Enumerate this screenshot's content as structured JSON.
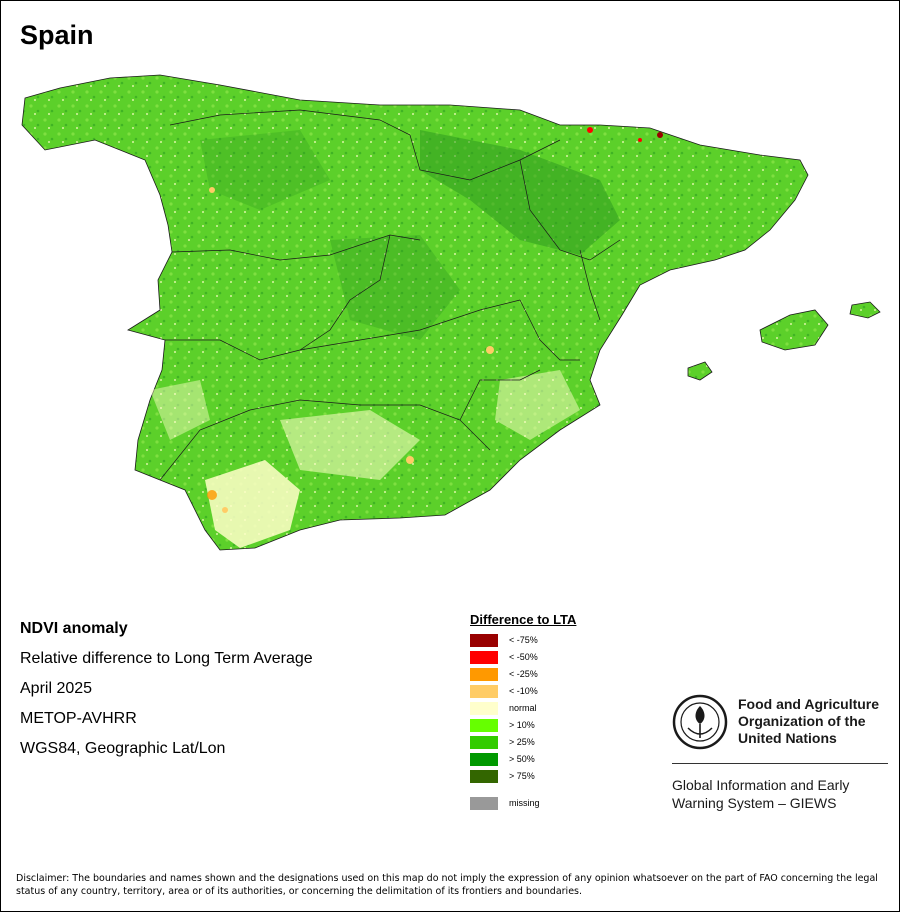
{
  "map": {
    "title": "Spain",
    "description": {
      "heading": "NDVI anomaly",
      "lines": [
        "Relative difference to Long Term Average",
        "April 2025",
        "METOP-AVHRR",
        "WGS84, Geographic Lat/Lon"
      ]
    },
    "colors": {
      "land_base": "#5cd02a",
      "land_dark": "#2f9a1f",
      "land_darker": "#1f7a1a",
      "normal": "#ffffc8",
      "border": "#1a1a1a"
    }
  },
  "legend": {
    "title": "Difference to LTA",
    "items": [
      {
        "label": "< -75%",
        "color": "#990000"
      },
      {
        "label": "< -50%",
        "color": "#ff0000"
      },
      {
        "label": "< -25%",
        "color": "#ff9900"
      },
      {
        "label": "< -10%",
        "color": "#ffcc66"
      },
      {
        "label": "normal",
        "color": "#ffffcc"
      },
      {
        "label": "> 10%",
        "color": "#66ff00"
      },
      {
        "label": "> 25%",
        "color": "#33cc00"
      },
      {
        "label": "> 50%",
        "color": "#009900"
      },
      {
        "label": "> 75%",
        "color": "#336600"
      }
    ],
    "missing": {
      "label": "missing",
      "color": "#999999"
    }
  },
  "branding": {
    "logo_text": "FAO",
    "org_name": [
      "Food and Agriculture",
      "Organization of the",
      "United Nations"
    ],
    "system": [
      "Global Information and Early",
      "Warning System – GIEWS"
    ]
  },
  "disclaimer": "Disclaimer: The boundaries and names shown and the designations used on this map do not imply the expression of any opinion whatsoever on the part of FAO concerning the legal status of any country, territory, area or of its authorities, or concerning the delimitation of its frontiers and boundaries."
}
